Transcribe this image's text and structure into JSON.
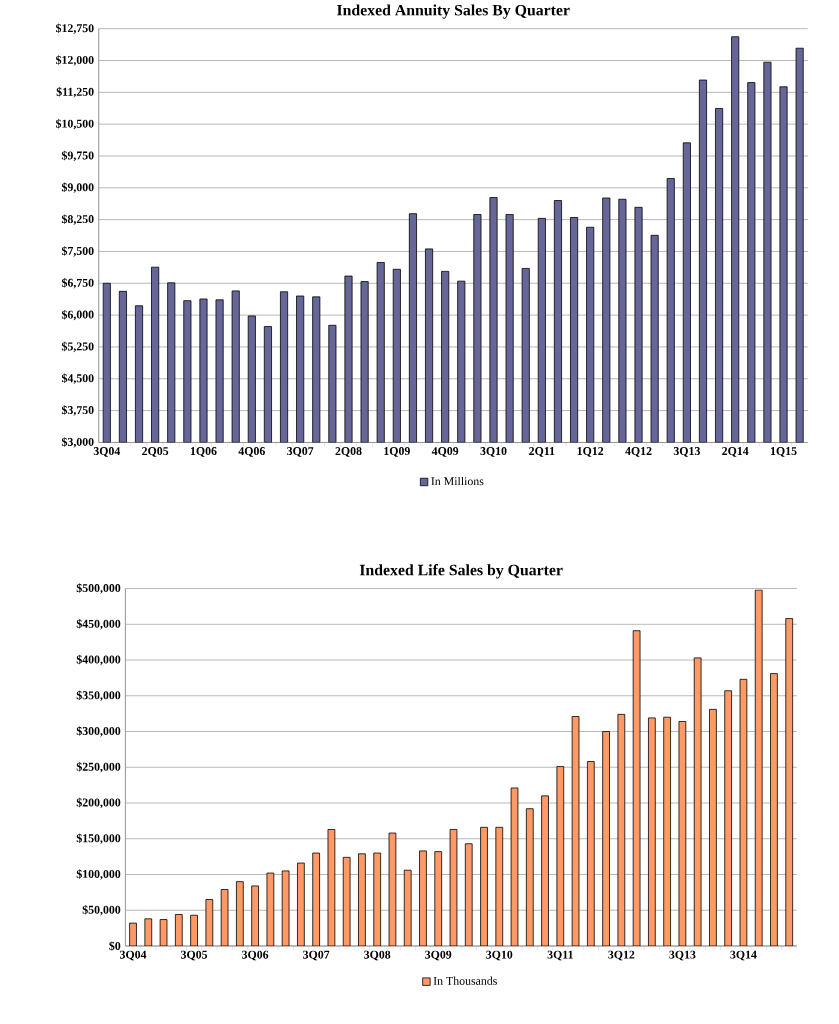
{
  "chart_data": [
    {
      "type": "bar",
      "title": "Indexed Annuity Sales By Quarter",
      "categories": [
        "3Q04",
        null,
        null,
        "2Q05",
        null,
        null,
        "1Q06",
        null,
        null,
        "4Q06",
        null,
        null,
        "3Q07",
        null,
        null,
        "2Q08",
        null,
        null,
        "1Q09",
        null,
        null,
        "4Q09",
        null,
        null,
        "3Q10",
        null,
        null,
        "2Q11",
        null,
        null,
        "1Q12",
        null,
        null,
        "4Q12",
        null,
        null,
        "3Q13",
        null,
        null,
        "2Q14",
        null,
        null,
        "1Q15",
        null
      ],
      "series": [
        {
          "name": "In Millions",
          "color": "#666699",
          "values": [
            6750,
            6560,
            6220,
            7130,
            6760,
            6340,
            6380,
            6360,
            6570,
            5980,
            5730,
            6550,
            6450,
            6430,
            5760,
            6920,
            6790,
            7240,
            7080,
            8390,
            7560,
            7030,
            6800,
            8370,
            8770,
            8370,
            7100,
            8280,
            8700,
            8300,
            8070,
            8760,
            8730,
            8540,
            7880,
            9220,
            10060,
            11540,
            10870,
            12560,
            11480,
            11960,
            11380,
            12290
          ]
        }
      ],
      "ylim": [
        3000,
        12750
      ],
      "yticks": [
        {
          "value": 3000,
          "label": "$3,000"
        },
        {
          "value": 3750,
          "label": "$3,750"
        },
        {
          "value": 4500,
          "label": "$4,500"
        },
        {
          "value": 5250,
          "label": "$5,250"
        },
        {
          "value": 6000,
          "label": "$6,000"
        },
        {
          "value": 6750,
          "label": "$6,750"
        },
        {
          "value": 7500,
          "label": "$7,500"
        },
        {
          "value": 8250,
          "label": "$8,250"
        },
        {
          "value": 9000,
          "label": "$9,000"
        },
        {
          "value": 9750,
          "label": "$9,750"
        },
        {
          "value": 10500,
          "label": "$10,500"
        },
        {
          "value": 11250,
          "label": "$11,250"
        },
        {
          "value": 12000,
          "label": "$12,000"
        },
        {
          "value": 12750,
          "label": "$12,750"
        }
      ],
      "grid": "y",
      "legend": "bottom"
    },
    {
      "type": "bar",
      "title": "Indexed Life Sales by Quarter",
      "categories": [
        "3Q04",
        null,
        null,
        null,
        "3Q05",
        null,
        null,
        null,
        "3Q06",
        null,
        null,
        null,
        "3Q07",
        null,
        null,
        null,
        "3Q08",
        null,
        null,
        null,
        "3Q09",
        null,
        null,
        null,
        "3Q10",
        null,
        null,
        null,
        "3Q11",
        null,
        null,
        null,
        "3Q12",
        null,
        null,
        null,
        "3Q13",
        null,
        null,
        null,
        "3Q14",
        null,
        null,
        null
      ],
      "series": [
        {
          "name": "In Thousands",
          "color": "#ff9966",
          "values": [
            32000,
            38000,
            37000,
            44000,
            43000,
            65000,
            79000,
            90000,
            84000,
            102000,
            105000,
            116000,
            130000,
            163000,
            124000,
            129000,
            130000,
            158000,
            106000,
            133000,
            132000,
            163000,
            143000,
            166000,
            166000,
            221000,
            192000,
            210000,
            251000,
            321000,
            258000,
            300000,
            324000,
            441000,
            319000,
            320000,
            314000,
            403000,
            331000,
            357000,
            373000,
            498000,
            381000,
            458000
          ]
        }
      ],
      "ylim": [
        0,
        500000
      ],
      "yticks": [
        {
          "value": 0,
          "label": "$0"
        },
        {
          "value": 50000,
          "label": "$50,000"
        },
        {
          "value": 100000,
          "label": "$100,000"
        },
        {
          "value": 150000,
          "label": "$150,000"
        },
        {
          "value": 200000,
          "label": "$200,000"
        },
        {
          "value": 250000,
          "label": "$250,000"
        },
        {
          "value": 300000,
          "label": "$300,000"
        },
        {
          "value": 350000,
          "label": "$350,000"
        },
        {
          "value": 400000,
          "label": "$400,000"
        },
        {
          "value": 450000,
          "label": "$450,000"
        },
        {
          "value": 500000,
          "label": "$500,000"
        }
      ],
      "grid": "y",
      "legend": "bottom"
    }
  ]
}
